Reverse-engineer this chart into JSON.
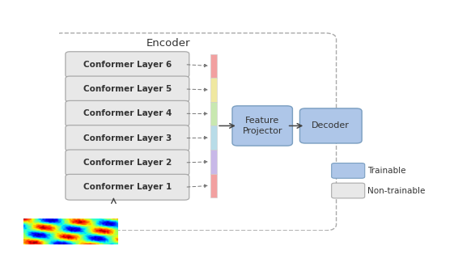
{
  "title": "Encoder",
  "conformer_layers": [
    "Conformer Layer 6",
    "Conformer Layer 5",
    "Conformer Layer 4",
    "Conformer Layer 3",
    "Conformer Layer 2",
    "Conformer Layer 1"
  ],
  "conformer_box_color": "#e8e8e8",
  "conformer_box_edge": "#aaaaaa",
  "feature_box_color": "#aec6e8",
  "feature_box_edge": "#7a9ec0",
  "decoder_box_color": "#aec6e8",
  "decoder_box_edge": "#7a9ec0",
  "stack_colors": [
    "#f2a0a0",
    "#f0e8a0",
    "#c8e8b0",
    "#b8dce8",
    "#c8b8e8",
    "#f2a0a0"
  ],
  "spectrogram_cmap": "jet",
  "legend_trainable_color": "#aec6e8",
  "legend_nontrain_color": "#e8e8e8",
  "figsize": [
    5.82,
    3.2
  ],
  "dpi": 100
}
